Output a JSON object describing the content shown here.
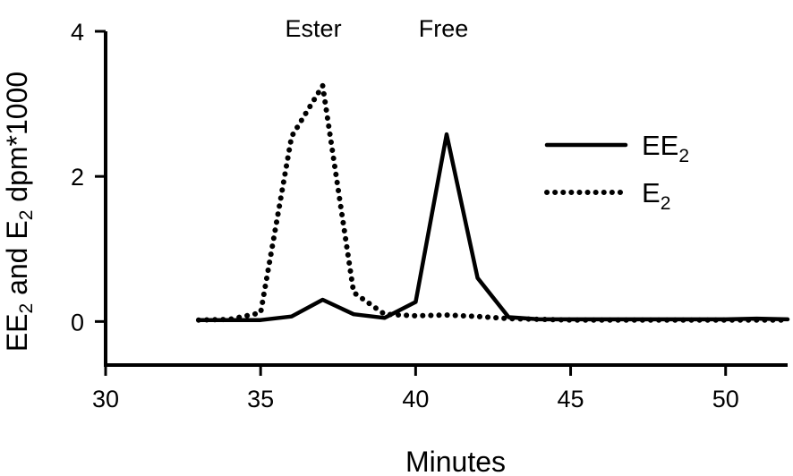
{
  "chart_data": {
    "type": "line",
    "xlabel": "Minutes",
    "ylabel": {
      "main": "EE",
      "sub1": "2",
      "mid": " and E",
      "sub2": "2",
      "tail": " dpm*1000"
    },
    "xlim": [
      30,
      52
    ],
    "ylim": [
      -0.6,
      4
    ],
    "x_ticks": [
      30,
      35,
      40,
      45,
      50
    ],
    "y_ticks": [
      0,
      2,
      4
    ],
    "grid": false,
    "legend_position": "right",
    "annotations": [
      {
        "text": "Ester",
        "x": 36.7
      },
      {
        "text": "Free",
        "x": 40.9
      }
    ],
    "series": [
      {
        "name": "EE",
        "name_sub": "2",
        "style": "solid",
        "color": "#000000",
        "x": [
          33,
          34,
          35,
          36,
          37,
          38,
          39,
          40,
          41,
          42,
          43,
          44,
          45,
          46,
          47,
          48,
          49,
          50,
          51,
          52
        ],
        "y": [
          0.02,
          0.02,
          0.02,
          0.07,
          0.3,
          0.1,
          0.05,
          0.27,
          2.58,
          0.6,
          0.06,
          0.03,
          0.03,
          0.03,
          0.03,
          0.03,
          0.03,
          0.03,
          0.04,
          0.03
        ]
      },
      {
        "name": "E",
        "name_sub": "2",
        "style": "dotted",
        "color": "#000000",
        "x": [
          33,
          34,
          35,
          36,
          37,
          38,
          39,
          40,
          41,
          42,
          43,
          44,
          45,
          46,
          47,
          48,
          49,
          50,
          51,
          52
        ],
        "y": [
          0.02,
          0.03,
          0.12,
          2.55,
          3.25,
          0.4,
          0.1,
          0.08,
          0.09,
          0.07,
          0.04,
          0.03,
          0.02,
          0.02,
          0.02,
          0.02,
          0.02,
          0.02,
          0.02,
          0.02
        ]
      }
    ]
  }
}
